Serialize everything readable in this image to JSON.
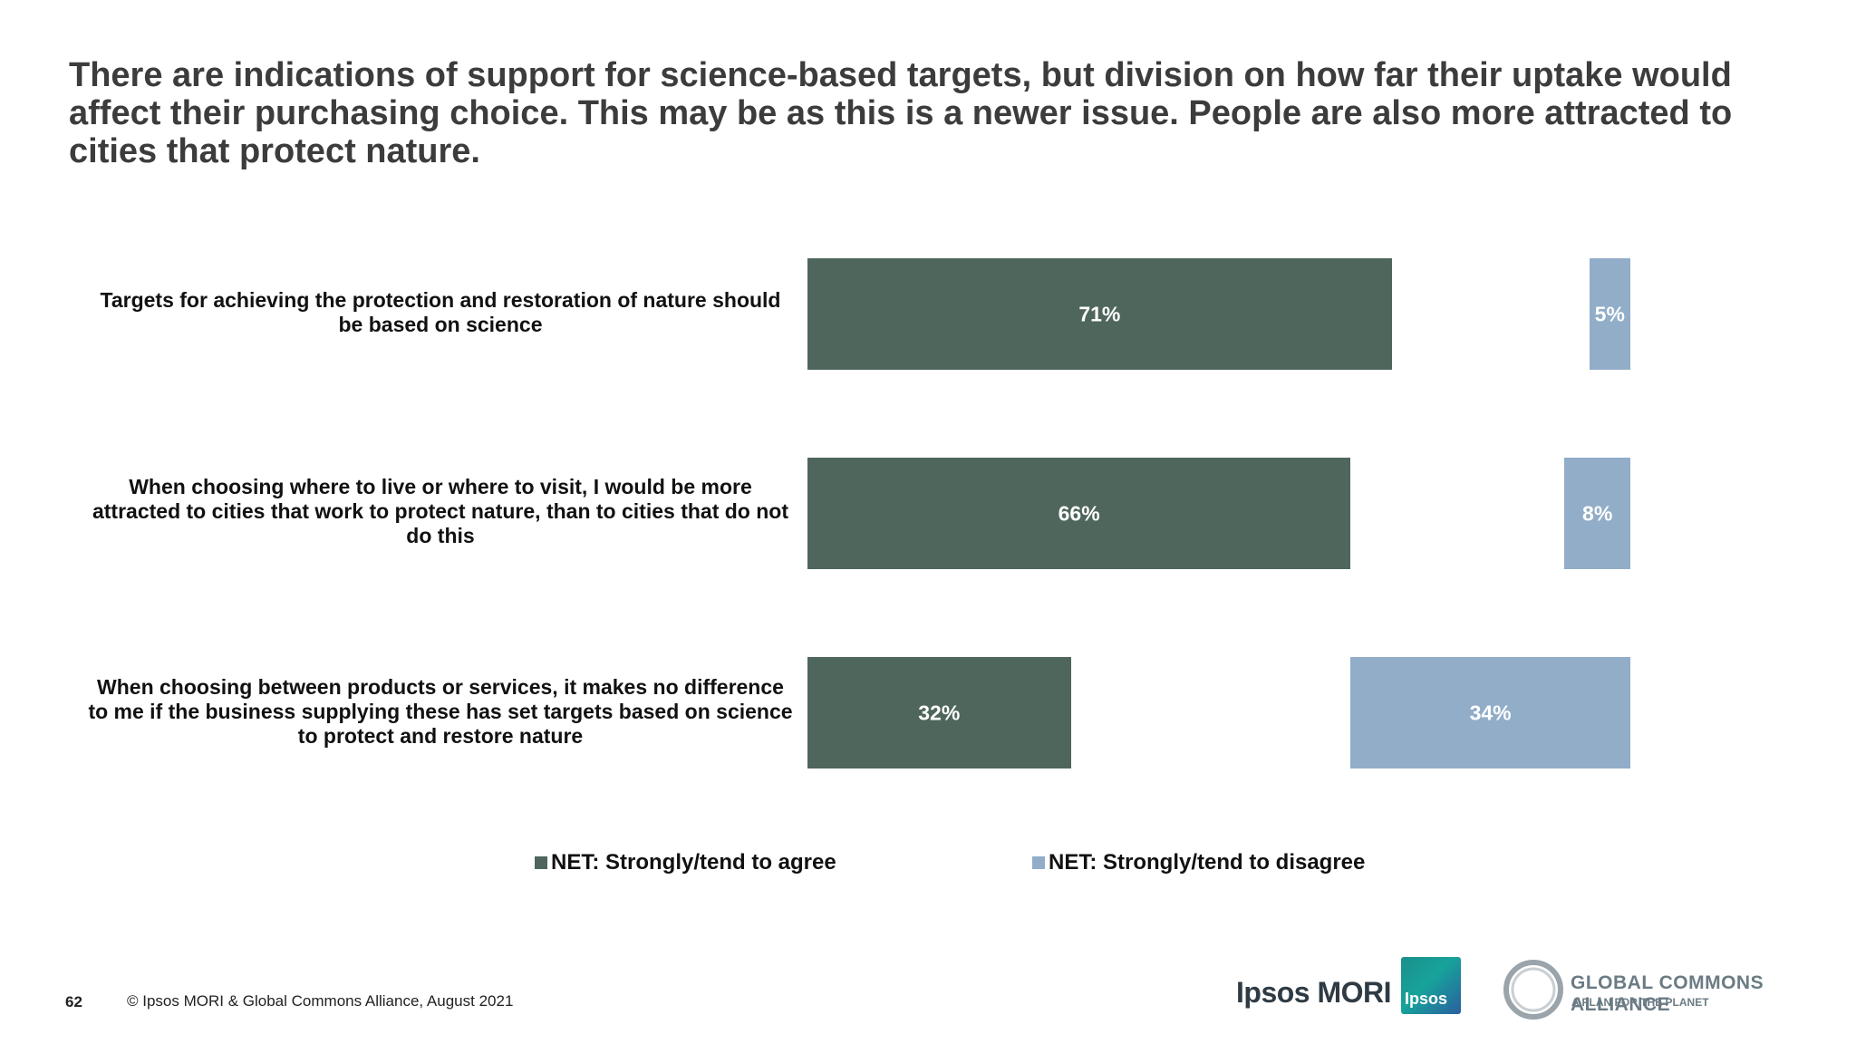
{
  "title": "There are indications of support for science-based targets, but division on how far their uptake would affect their purchasing choice. This may be as this is a newer issue. People are also more attracted to cities that protect nature.",
  "chart_data": {
    "type": "bar",
    "orientation": "horizontal",
    "categories": [
      "Targets for achieving the protection and restoration of nature should be based on science",
      "When choosing where to live or where to visit, I would be more attracted to cities that work to protect nature, than to cities that do not do this",
      "When choosing between products or services, it makes no difference to me if the business supplying these has set targets based on science to protect and restore nature"
    ],
    "series": [
      {
        "name": "NET: Strongly/tend to agree",
        "values": [
          71,
          66,
          32
        ],
        "labels": [
          "71%",
          "66%",
          "32%"
        ],
        "color": "#4e665c",
        "anchor": "left"
      },
      {
        "name": "NET: Strongly/tend to disagree",
        "values": [
          5,
          8,
          34
        ],
        "labels": [
          "5%",
          "8%",
          "34%"
        ],
        "color": "#91adc8",
        "anchor": "right"
      }
    ],
    "unit": "%",
    "legend_position": "bottom"
  },
  "footer": {
    "page_number": "62",
    "copyright": "© Ipsos MORI & Global Commons Alliance, August 2021"
  },
  "logos": {
    "ipsos_mori": "Ipsos MORI",
    "ipsos": "Ipsos",
    "gca_name": "GLOBAL COMMONS ALLIANCE",
    "gca_tagline": "A PLAN FOR THE PLANET"
  }
}
